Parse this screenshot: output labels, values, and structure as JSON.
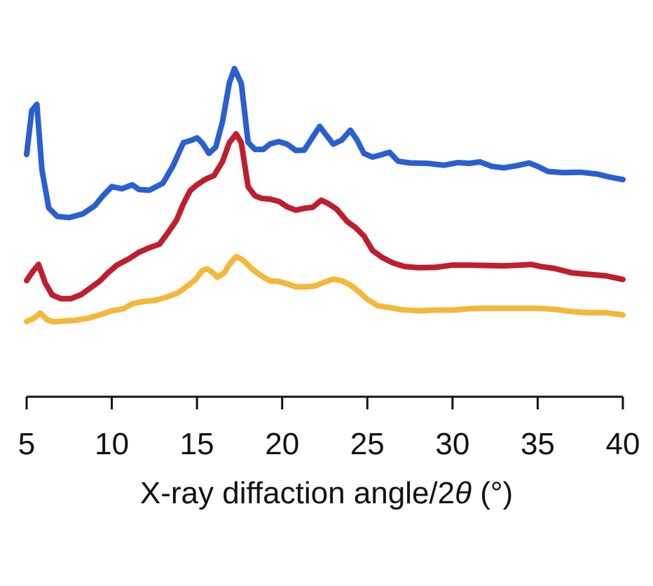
{
  "chart_data": {
    "type": "line",
    "title": "",
    "xlabel": "X-ray diffaction angle/2θ (°)",
    "xlabel_parts": {
      "main": "X-ray diffaction angle/2",
      "symbol": "θ",
      "unit": " (°)"
    },
    "ylabel": "",
    "xlim": [
      5,
      40
    ],
    "ylim": [
      0,
      100
    ],
    "xticks": [
      5,
      10,
      15,
      20,
      25,
      30,
      35,
      40
    ],
    "xtick_labels": [
      "5",
      "10",
      "15",
      "20",
      "25",
      "30",
      "35",
      "40"
    ],
    "grid": false,
    "legend": "none",
    "series": [
      {
        "name": "blue",
        "color": "#2a5fcf",
        "x": [
          5,
          5.3,
          5.6,
          5.9,
          6.3,
          6.8,
          7.5,
          8.3,
          9.0,
          9.5,
          10.0,
          10.6,
          11.2,
          11.6,
          12.2,
          13.0,
          13.6,
          14.2,
          14.7,
          15.0,
          15.3,
          15.7,
          16.1,
          16.5,
          16.9,
          17.2,
          17.6,
          18.0,
          18.4,
          18.9,
          19.3,
          19.8,
          20.3,
          20.8,
          21.3,
          21.8,
          22.2,
          22.6,
          23.0,
          23.5,
          24.0,
          24.4,
          24.8,
          25.3,
          25.8,
          26.3,
          26.8,
          27.5,
          28.5,
          29.5,
          30.3,
          31.0,
          31.6,
          32.3,
          33.0,
          33.8,
          34.5,
          35.0,
          35.6,
          36.5,
          37.5,
          38.5,
          39.2,
          40.0
        ],
        "y": [
          65.7,
          77.6,
          79.3,
          61.5,
          51.2,
          48.9,
          48.6,
          49.6,
          51.8,
          54.6,
          57.0,
          56.4,
          57.5,
          56.2,
          56.0,
          57.9,
          62.7,
          68.9,
          69.6,
          70.2,
          68.9,
          66.0,
          67.7,
          74.6,
          85.1,
          89.0,
          85.0,
          69.0,
          67.1,
          67.1,
          68.6,
          69.2,
          68.5,
          66.8,
          66.9,
          70.5,
          73.3,
          70.9,
          68.5,
          69.6,
          72.3,
          69.6,
          66.0,
          65.0,
          65.6,
          66.3,
          63.9,
          63.4,
          63.3,
          62.8,
          63.5,
          63.3,
          63.7,
          62.5,
          62.1,
          62.7,
          63.4,
          62.5,
          61.1,
          60.8,
          60.9,
          60.4,
          59.6,
          58.9
        ]
      },
      {
        "name": "red",
        "color": "#bf1e2d",
        "x": [
          5,
          5.3,
          5.7,
          6.1,
          6.5,
          7.0,
          7.6,
          8.2,
          8.8,
          9.3,
          9.8,
          10.3,
          11.0,
          11.6,
          12.2,
          12.8,
          13.3,
          13.8,
          14.2,
          14.6,
          15.0,
          15.5,
          16.0,
          16.5,
          16.9,
          17.3,
          17.6,
          18.0,
          18.4,
          18.8,
          19.3,
          19.8,
          20.3,
          20.8,
          21.3,
          21.8,
          22.3,
          22.7,
          23.2,
          23.8,
          24.3,
          24.8,
          25.3,
          25.9,
          26.5,
          27.2,
          28.0,
          29.0,
          30.0,
          31.0,
          32.0,
          33.0,
          34.0,
          34.6,
          35.2,
          36.0,
          37.0,
          38.0,
          39.0,
          40.0
        ],
        "y": [
          31.5,
          33.6,
          35.9,
          30.8,
          27.6,
          26.6,
          26.6,
          27.7,
          29.7,
          31.4,
          33.7,
          35.7,
          37.4,
          39.2,
          40.4,
          41.4,
          44.5,
          47.9,
          52.3,
          55.9,
          57.5,
          59.0,
          60.0,
          63.8,
          68.9,
          71.3,
          68.9,
          57.0,
          54.5,
          53.8,
          53.6,
          53.0,
          51.5,
          50.6,
          51.1,
          51.4,
          53.3,
          52.4,
          50.9,
          47.6,
          45.9,
          43.6,
          39.7,
          37.7,
          36.3,
          35.3,
          35.0,
          35.1,
          35.7,
          35.7,
          35.6,
          35.5,
          35.7,
          35.9,
          35.3,
          34.8,
          33.6,
          33.2,
          32.8,
          31.8
        ]
      },
      {
        "name": "yellow",
        "color": "#f3b83a",
        "x": [
          5,
          5.4,
          5.8,
          6.2,
          6.6,
          7.1,
          7.8,
          8.6,
          9.3,
          10.0,
          10.7,
          11.2,
          11.8,
          12.5,
          13.2,
          13.9,
          14.4,
          14.9,
          15.3,
          15.6,
          15.9,
          16.2,
          16.6,
          16.9,
          17.3,
          17.7,
          18.2,
          18.8,
          19.3,
          19.8,
          20.3,
          20.8,
          21.3,
          21.9,
          22.5,
          23.0,
          23.5,
          24.0,
          24.5,
          25.0,
          25.6,
          26.3,
          27.0,
          28.0,
          29.0,
          30.0,
          31.0,
          32.0,
          33.0,
          34.0,
          35.0,
          36.0,
          37.0,
          38.0,
          39.0,
          40.0
        ],
        "y": [
          20.4,
          21.2,
          22.7,
          20.9,
          20.3,
          20.5,
          20.7,
          21.3,
          22.2,
          23.3,
          23.9,
          25.2,
          25.8,
          26.1,
          27.0,
          28.2,
          29.9,
          31.7,
          34.2,
          34.7,
          33.8,
          32.4,
          33.6,
          35.9,
          38.0,
          37.1,
          34.8,
          32.7,
          31.4,
          31.3,
          30.6,
          29.8,
          29.8,
          30.0,
          31.1,
          31.9,
          31.5,
          30.3,
          28.5,
          26.4,
          24.7,
          24.2,
          23.6,
          23.3,
          23.5,
          23.5,
          23.9,
          24.0,
          24.0,
          24.0,
          24.0,
          23.7,
          23.1,
          22.8,
          22.8,
          22.2
        ]
      }
    ]
  }
}
